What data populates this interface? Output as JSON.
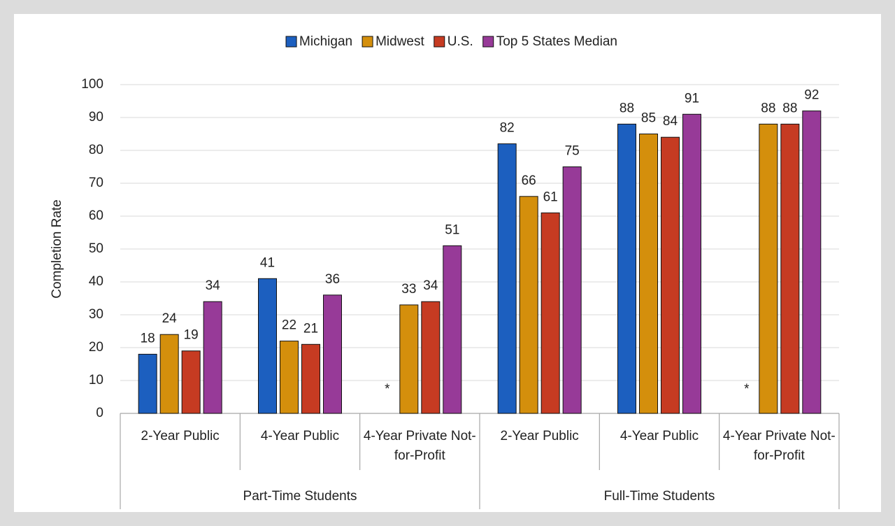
{
  "chart_data": {
    "type": "bar",
    "y_label": "Completion Rate",
    "categories": [
      "2-Year Public",
      "4-Year Public",
      "4-Year Private Not-for-Profit",
      "2-Year Public",
      "4-Year Public",
      "4-Year Private Not-for-Profit"
    ],
    "groups": [
      "Part-Time Students",
      "Full-Time Students"
    ],
    "series": [
      {
        "name": "Michigan",
        "color": "#1c5fbf",
        "values": [
          18,
          41,
          null,
          82,
          88,
          null
        ],
        "value_labels": [
          "18",
          "41",
          "*",
          "82",
          "88",
          "*"
        ]
      },
      {
        "name": "Midwest",
        "color": "#d48f0c",
        "values": [
          24,
          22,
          33,
          66,
          85,
          88
        ]
      },
      {
        "name": "U.S.",
        "color": "#c63b22",
        "values": [
          19,
          21,
          34,
          61,
          84,
          88
        ]
      },
      {
        "name": "Top 5 States Median",
        "color": "#973a98",
        "values": [
          34,
          36,
          51,
          75,
          91,
          92
        ]
      }
    ],
    "ylim": [
      0,
      100
    ],
    "yticks": [
      0,
      10,
      20,
      30,
      40,
      50,
      60,
      70,
      80,
      90,
      100
    ],
    "grid": true,
    "legend": "top"
  }
}
